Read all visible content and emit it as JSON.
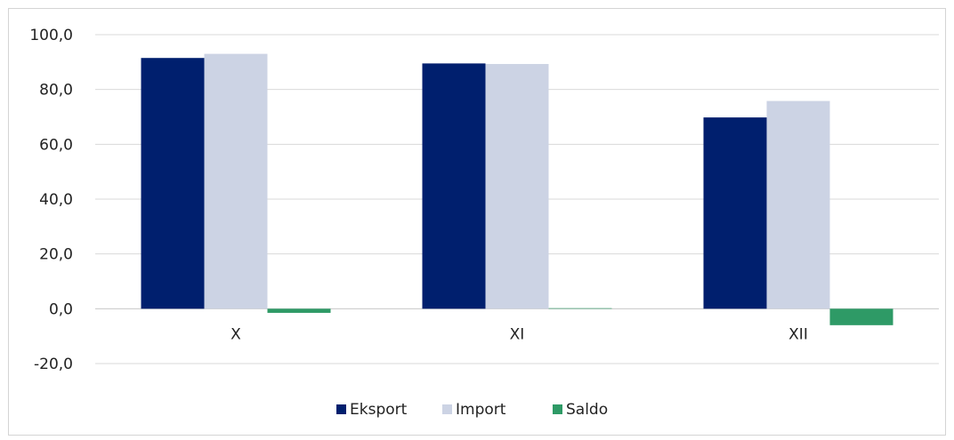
{
  "chart_data": {
    "type": "bar",
    "categories": [
      "X",
      "XI",
      "XII"
    ],
    "series": [
      {
        "name": "Eksport",
        "values": [
          91.5,
          89.5,
          69.8
        ],
        "color": "#001f6e"
      },
      {
        "name": "Import",
        "values": [
          93.0,
          89.3,
          75.8
        ],
        "color": "#ccd3e4"
      },
      {
        "name": "Saldo",
        "values": [
          -1.5,
          0.2,
          -6.0
        ],
        "color": "#2e9a66"
      }
    ],
    "ylim": [
      -20,
      100
    ],
    "yticks": [
      100,
      80,
      60,
      40,
      20,
      0,
      -20
    ],
    "ytick_labels": [
      "100,0",
      "80,0",
      "60,0",
      "40,0",
      "20,0",
      "0,0",
      "-20,0"
    ],
    "grid": true,
    "legend_position": "bottom"
  }
}
